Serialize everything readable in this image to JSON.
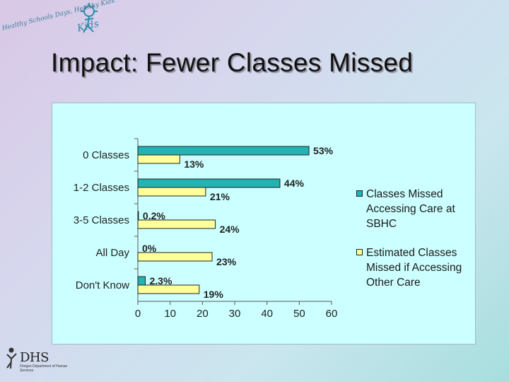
{
  "header": {
    "title": "Impact: Fewer Classes Missed",
    "logo_text": "Healthy Schools Days, Healthy Kids",
    "logo_kids": "Kids",
    "footer_logo": "DHS",
    "footer_logo_sub": "Oregon Department of Human Services"
  },
  "colors": {
    "teal": "#22b3b3",
    "yellow": "#ffff99",
    "panel": "#ccffff"
  },
  "legend": {
    "items": [
      {
        "label": "Classes Missed Accessing Care at SBHC",
        "color": "#22b3b3"
      },
      {
        "label": "Estimated Classes Missed if Accessing Other Care",
        "color": "#ffff99"
      }
    ]
  },
  "chart_data": {
    "type": "bar",
    "orientation": "horizontal",
    "categories": [
      "0 Classes",
      "1-2 Classes",
      "3-5 Classes",
      "All Day",
      "Don't Know"
    ],
    "series": [
      {
        "name": "Classes Missed Accessing Care at SBHC",
        "values": [
          53,
          44,
          0.2,
          0,
          2.3
        ],
        "labels": [
          "53%",
          "44%",
          "0.2%",
          "0%",
          "2.3%"
        ]
      },
      {
        "name": "Estimated Classes Missed if Accessing Other Care",
        "values": [
          13,
          21,
          24,
          23,
          19
        ],
        "labels": [
          "13%",
          "21%",
          "24%",
          "23%",
          "19%"
        ]
      }
    ],
    "xlim": [
      0,
      60
    ],
    "xticks": [
      0,
      10,
      20,
      30,
      40,
      50,
      60
    ],
    "title": "",
    "xlabel": "",
    "ylabel": "",
    "grid": false,
    "legend_position": "right"
  }
}
